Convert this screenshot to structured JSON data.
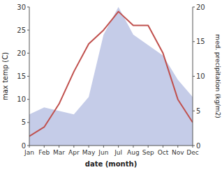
{
  "chart_data": {
    "type": "line",
    "categories": [
      "Jan",
      "Feb",
      "Mar",
      "Apr",
      "May",
      "Jun",
      "Jul",
      "Aug",
      "Sep",
      "Oct",
      "Nov",
      "Dec"
    ],
    "xlabel": "date (month)",
    "ylabel": "max temp (C)",
    "y2label": "med. precipitation (kg/m2)",
    "ylim": [
      0,
      30
    ],
    "yticks": [
      0,
      5,
      10,
      15,
      20,
      25,
      30
    ],
    "y2lim": [
      0,
      20
    ],
    "y2ticks": [
      0,
      5,
      10,
      15,
      20
    ],
    "grid": false,
    "series": [
      {
        "type": "area",
        "axis": "y2",
        "color": "#c5cce8",
        "values": [
          4.5,
          5.5,
          5.0,
          4.5,
          7.0,
          16.0,
          20.0,
          16.0,
          14.5,
          13.0,
          9.5,
          7.0
        ]
      },
      {
        "type": "line",
        "color": "#c0504d",
        "values": [
          2,
          4,
          9,
          16,
          22,
          25,
          29,
          26,
          26,
          20,
          10,
          5
        ]
      }
    ]
  }
}
